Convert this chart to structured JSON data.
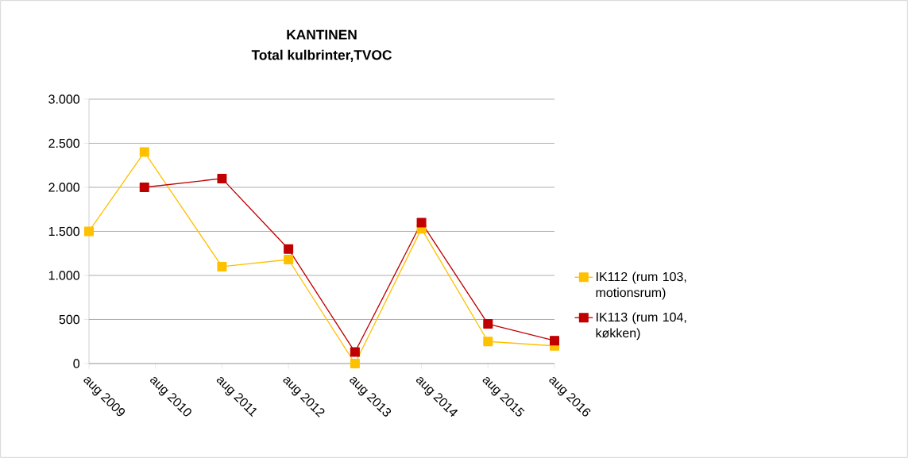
{
  "chart_data": {
    "type": "line",
    "title": "KANTINEN",
    "subtitle": "Total kulbrinter,TVOC",
    "x": [
      "2009-08",
      "2010-06",
      "2011-08",
      "2012-08",
      "2013-08",
      "2014-08",
      "2015-08",
      "2016-08"
    ],
    "series": [
      {
        "name": "IK112 (rum 103, motionsrum)",
        "color": "#ffc000",
        "values": [
          1500,
          2400,
          1100,
          1180,
          0,
          1530,
          250,
          200
        ]
      },
      {
        "name": "IK113 (rum 104, køkken)",
        "color": "#c00000",
        "values": [
          null,
          2000,
          2100,
          1300,
          130,
          1600,
          450,
          260
        ]
      }
    ],
    "xlim": [
      "2009-08",
      "2016-08"
    ],
    "xticks": [
      {
        "value": "2009-08",
        "label": "aug 2009"
      },
      {
        "value": "2010-08",
        "label": "aug 2010"
      },
      {
        "value": "2011-08",
        "label": "aug 2011"
      },
      {
        "value": "2012-08",
        "label": "aug 2012"
      },
      {
        "value": "2013-08",
        "label": "aug 2013"
      },
      {
        "value": "2014-08",
        "label": "aug 2014"
      },
      {
        "value": "2015-08",
        "label": "aug 2015"
      },
      {
        "value": "2016-08",
        "label": "aug 2016"
      }
    ],
    "ylim": [
      0,
      3000
    ],
    "yticks": [
      {
        "value": 0,
        "label": "0"
      },
      {
        "value": 500,
        "label": "500"
      },
      {
        "value": 1000,
        "label": "1.000"
      },
      {
        "value": 1500,
        "label": "1.500"
      },
      {
        "value": 2000,
        "label": "2.000"
      },
      {
        "value": 2500,
        "label": "2.500"
      },
      {
        "value": 3000,
        "label": "3.000"
      }
    ],
    "grid": "y",
    "legend": "right",
    "marker": "square",
    "line_style": "solid"
  }
}
